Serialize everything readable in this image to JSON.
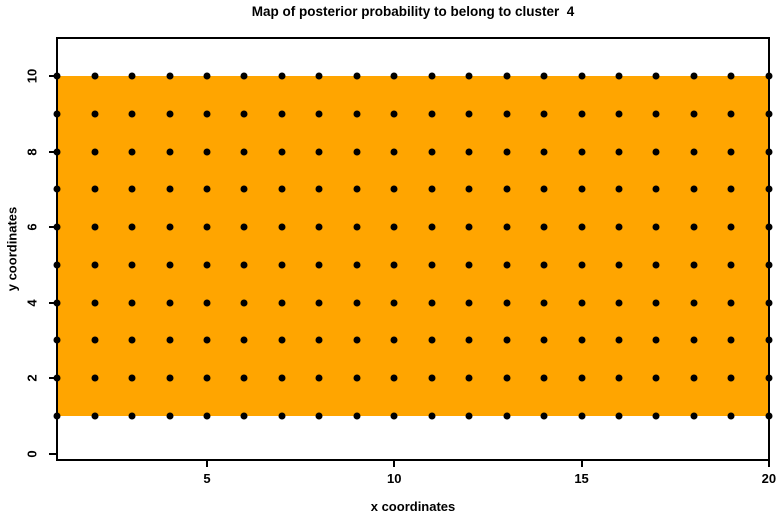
{
  "title": "Map of posterior probability to belong to cluster  4",
  "colors": {
    "background": "#FFFFFF",
    "region_fill": "#FFA500",
    "point": "#000000",
    "axis": "#000000",
    "text": "#000000"
  },
  "chart_data": {
    "type": "scatter",
    "title": "Map of posterior probability to belong to cluster  4",
    "xlabel": "x coordinates",
    "ylabel": "y coordinates",
    "x_ticks": [
      5,
      10,
      15,
      20
    ],
    "y_ticks": [
      0,
      2,
      4,
      6,
      8,
      10
    ],
    "xlim": [
      0.97,
      20.03
    ],
    "ylim": [
      -0.19,
      11.03
    ],
    "grid": "off",
    "legend": "none",
    "box": "full",
    "points": {
      "marker": "filled-circle",
      "color": "#000000",
      "grid_x": [
        1,
        2,
        3,
        4,
        5,
        6,
        7,
        8,
        9,
        10,
        11,
        12,
        13,
        14,
        15,
        16,
        17,
        18,
        19,
        20
      ],
      "grid_y": [
        1,
        2,
        3,
        4,
        5,
        6,
        7,
        8,
        9,
        10
      ]
    },
    "region": {
      "name": "posterior-probability-region",
      "x_range": [
        1,
        20
      ],
      "y_range": [
        1,
        10
      ],
      "fill": "#FFA500"
    }
  }
}
